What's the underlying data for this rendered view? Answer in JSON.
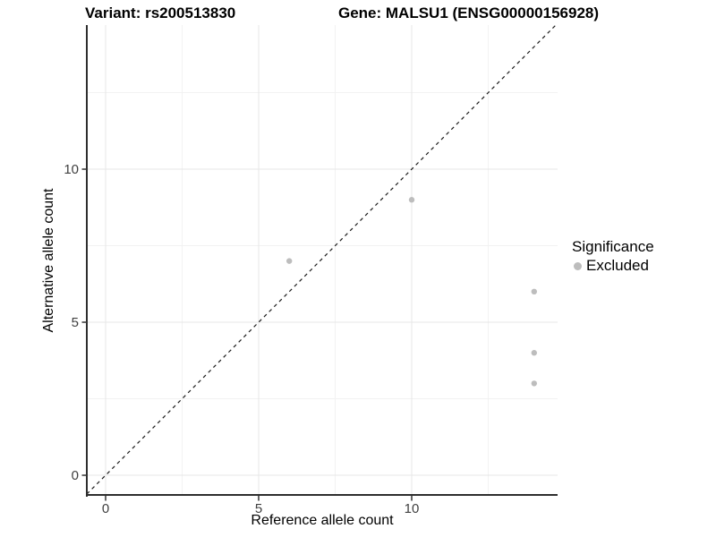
{
  "header": {
    "variant_title": "Variant: rs200513830",
    "gene_title": "Gene: MALSU1 (ENSG00000156928)"
  },
  "chart_data": {
    "type": "scatter",
    "title": "Variant: rs200513830 — Gene: MALSU1 (ENSG00000156928)",
    "xlabel": "Reference allele count",
    "ylabel": "Alternative allele count",
    "xlim": [
      -0.614,
      14.766
    ],
    "ylim": [
      -0.672,
      14.708
    ],
    "x_ticks": [
      0,
      5,
      10
    ],
    "x_tick_labels": [
      "0",
      "5",
      "10"
    ],
    "y_ticks": [
      0,
      5,
      10
    ],
    "y_tick_labels": [
      "0",
      "5",
      "10"
    ],
    "x_minor_gridlines": [
      2.5,
      7.5,
      12.5
    ],
    "y_minor_gridlines": [
      2.5,
      7.5,
      12.5
    ],
    "grid": true,
    "identity_line": {
      "style": "dashed",
      "equation": "y = x"
    },
    "series": [
      {
        "name": "Excluded",
        "marker": "circle",
        "color": "#bdbdbd",
        "points": [
          [
            6,
            7
          ],
          [
            10,
            9
          ],
          [
            14,
            6
          ],
          [
            14,
            4
          ],
          [
            14,
            3
          ]
        ]
      }
    ]
  },
  "legend": {
    "title": "Significance",
    "position": "right",
    "items": [
      {
        "label": "Excluded",
        "marker_color": "#bdbdbd"
      }
    ]
  },
  "colors": {
    "background": "#ffffff",
    "grid_major": "#e7e7e7",
    "grid_minor": "#f2f2f2",
    "axis_line": "#2e2e2e",
    "tick_mark": "#333333",
    "tick_label": "#404040",
    "identity_line": "#1a1a1a",
    "point": "#bdbdbd"
  }
}
